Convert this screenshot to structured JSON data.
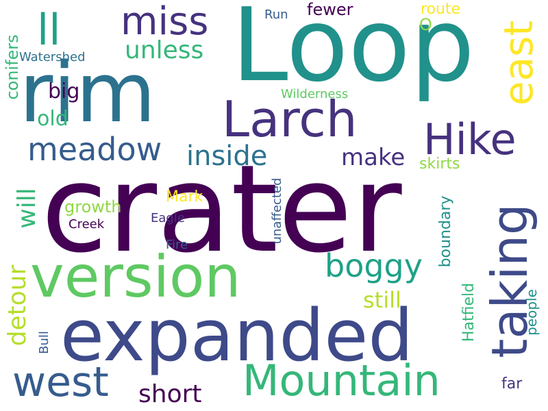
{
  "palette": {
    "deep_purple": "#440154",
    "purple": "#46327e",
    "indigo": "#3e4a89",
    "blue": "#365c8d",
    "steel_blue": "#2c728e",
    "teal": "#21918c",
    "sea_green": "#1fa187",
    "green": "#35b779",
    "light_green": "#5ec962",
    "lime": "#90d743",
    "yellow_green": "#b5de2b",
    "yellow": "#fde725"
  },
  "words": [
    {
      "key": "crater",
      "text": "crater",
      "color": "#440154"
    },
    {
      "key": "loop",
      "text": "Loop",
      "color": "#21918c"
    },
    {
      "key": "rim",
      "text": "rim",
      "color": "#2c728e"
    },
    {
      "key": "expanded",
      "text": "expanded",
      "color": "#3e4a89"
    },
    {
      "key": "version",
      "text": "version",
      "color": "#5ec962"
    },
    {
      "key": "larch",
      "text": "Larch",
      "color": "#46327e"
    },
    {
      "key": "mountain",
      "text": "Mountain",
      "color": "#35b779"
    },
    {
      "key": "west",
      "text": "west",
      "color": "#365c8d"
    },
    {
      "key": "taking",
      "text": "taking",
      "color": "#3e4a89"
    },
    {
      "key": "east",
      "text": "east",
      "color": "#fde725"
    },
    {
      "key": "miss",
      "text": "miss",
      "color": "#46327e"
    },
    {
      "key": "hike",
      "text": "Hike",
      "color": "#46327e"
    },
    {
      "key": "ll",
      "text": "ll",
      "color": "#1fa187"
    },
    {
      "key": "meadow",
      "text": "meadow",
      "color": "#365c8d"
    },
    {
      "key": "boggy",
      "text": "boggy",
      "color": "#1fa187"
    },
    {
      "key": "unless",
      "text": "unless",
      "color": "#35b779"
    },
    {
      "key": "inside",
      "text": "inside",
      "color": "#2c728e"
    },
    {
      "key": "short",
      "text": "short",
      "color": "#440154"
    },
    {
      "key": "detour",
      "text": "detour",
      "color": "#b5de2b"
    },
    {
      "key": "make",
      "text": "make",
      "color": "#46327e"
    },
    {
      "key": "will",
      "text": "will",
      "color": "#35b779"
    },
    {
      "key": "still",
      "text": "still",
      "color": "#b5de2b"
    },
    {
      "key": "big",
      "text": "big",
      "color": "#440154"
    },
    {
      "key": "old",
      "text": "old",
      "color": "#35b779"
    },
    {
      "key": "fewer",
      "text": "fewer",
      "color": "#440154"
    },
    {
      "key": "route",
      "text": "route",
      "color": "#fde725"
    },
    {
      "key": "conifers",
      "text": "conifers",
      "color": "#35b779"
    },
    {
      "key": "watershed",
      "text": "Watershed",
      "color": "#2c728e"
    },
    {
      "key": "run",
      "text": "Run",
      "color": "#365c8d"
    },
    {
      "key": "o",
      "text": "O",
      "color": "#90d743"
    },
    {
      "key": "wilderness",
      "text": "Wilderness",
      "color": "#5ec962"
    },
    {
      "key": "skirts",
      "text": "skirts",
      "color": "#90d743"
    },
    {
      "key": "growth",
      "text": "growth",
      "color": "#90d743"
    },
    {
      "key": "mark",
      "text": "Mark",
      "color": "#fde725"
    },
    {
      "key": "creek",
      "text": "Creek",
      "color": "#440154"
    },
    {
      "key": "eagle",
      "text": "Eagle",
      "color": "#46327e"
    },
    {
      "key": "fire",
      "text": "Fire",
      "color": "#365c8d"
    },
    {
      "key": "unaffected",
      "text": "unaffected",
      "color": "#365c8d"
    },
    {
      "key": "boundary",
      "text": "boundary",
      "color": "#21918c"
    },
    {
      "key": "hatfield",
      "text": "Hatfield",
      "color": "#35b779"
    },
    {
      "key": "people",
      "text": "people",
      "color": "#21918c"
    },
    {
      "key": "bull",
      "text": "Bull",
      "color": "#365c8d"
    },
    {
      "key": "far",
      "text": "far",
      "color": "#46327e"
    }
  ]
}
